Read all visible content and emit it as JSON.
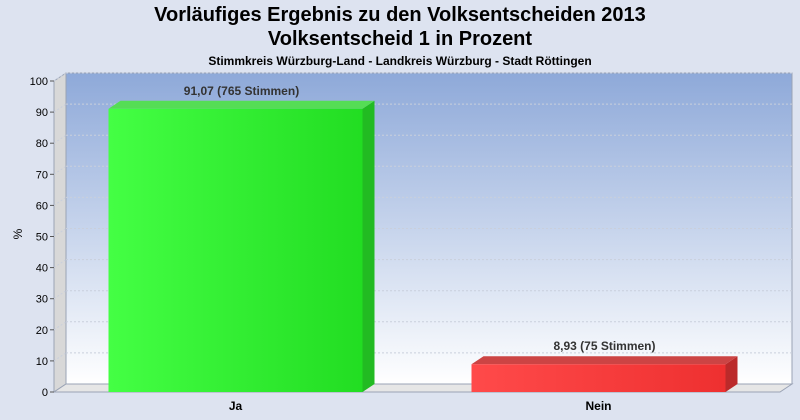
{
  "chart_data": {
    "type": "bar",
    "title": "Vorläufiges Ergebnis zu den Volksentscheiden 2013",
    "subtitle": "Volksentscheid 1 in Prozent",
    "subsubtitle": "Stimmkreis Würzburg-Land - Landkreis Würzburg - Stadt Röttingen",
    "ylabel": "%",
    "xlabel": "",
    "ylim": [
      0,
      100
    ],
    "yticks": [
      0,
      10,
      20,
      30,
      40,
      50,
      60,
      70,
      80,
      90,
      100
    ],
    "grid": true,
    "categories": [
      "Ja",
      "Nein"
    ],
    "values": [
      91.07,
      8.93
    ],
    "data_labels": [
      "91,07 (765 Stimmen)",
      "8,93 (75 Stimmen)"
    ],
    "colors": [
      "#33ee33",
      "#ee3333"
    ]
  }
}
